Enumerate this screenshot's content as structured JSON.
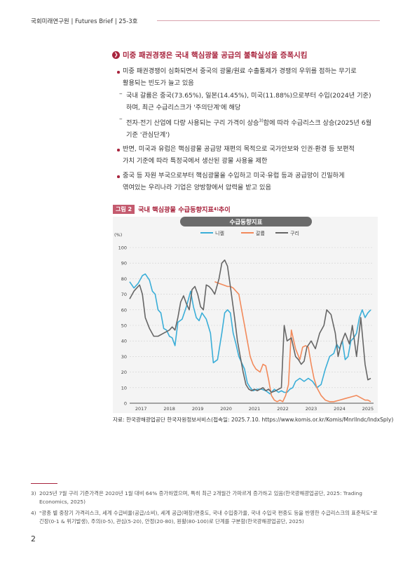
{
  "header": {
    "text": "국회미래연구원 | Futures Brief | 25-3호"
  },
  "section": {
    "title": "미중 패권경쟁은 국내 핵심광물 공급의 불확실성을 증폭시킴"
  },
  "bullets": [
    {
      "line1": "미중 패권경쟁이 심화되면서 중국의 광물/원료 수출통제가 경쟁의 우위를 점하는 무기로",
      "line2": "활용되는 빈도가 늘고 있음"
    },
    {
      "line1": "반면, 미국과 유럽은 핵심광물 공급망 재편의 목적으로 국가안보와 인권·환경 등 보편적",
      "line2": "가치 기준에 따라 특정국에서 생산된 광물 사용을 제한"
    },
    {
      "line1": "중국 등 자원 부국으로부터 핵심광물을 수입하고 미국·유럽 등과 공급망이 긴밀하게",
      "line2": "엮여있는 우리나라 기업은 양방향에서 압력을 받고 있음"
    }
  ],
  "subs": [
    {
      "line1": "국내 갈륨은 중국(73.65%), 일본(14.45%), 미국(11.88%)으로부터 수입(2024년 기준)",
      "line2": "하며, 최근 수급리스크가 '주의단계'에 해당"
    },
    {
      "line1a": "전자·전기 산업에 다량 사용되는 구리 가격이 상승",
      "sup": "3)",
      "line1b": "함에 따라 수급리스크 상승(2025년 6월",
      "line2": "기준 '관심단계')"
    }
  ],
  "figure": {
    "badge": "그림 2",
    "title": "국내 핵심광물 수급동향지표",
    "sup": "4)",
    "title_suffix": " 추이"
  },
  "source": "자료: 한국광해광업공단 한국자원정보서비스(접속일: 2025.7.10. https://www.komis.or.kr/Komis/MnrlIndc/IndxSply)",
  "footnotes": [
    {
      "num": "3)",
      "text": "2025년 7월 구리 기준가격은 2020년 1월 대비 64% 증가하였으며, 특히 최근 2개월간 가파르게 증가하고 있음(한국광해광업공단, 2025: Trading Economics, 2025)"
    },
    {
      "num": "4)",
      "text": "\"광종 별 중장기 가격리스크, 세계 수급비율(공급/소비), 세계 공급(매장)편중도, 국내 수입중가율, 국내 수입국 편중도 등을 반영한 수급리스크의 표준척도\"로 긴장(0-1 & 위기발생), 주의(0-5), 관심(5-20), 안정(20-80), 원활(80-100)로 단계를 구분함(한국광해광업공단, 2025)"
    }
  ],
  "page_number": "2",
  "chart_data": {
    "type": "line",
    "title": "수급동향지표",
    "ylabel": "(%)",
    "xlabel": "",
    "ylim": [
      0,
      100
    ],
    "xlim": [
      2016.6,
      2025.2
    ],
    "y_ticks": [
      "0",
      "10",
      "20",
      "30",
      "40",
      "50",
      "60",
      "70",
      "80",
      "90",
      "100"
    ],
    "x_ticks": [
      "2017",
      "2018",
      "2019",
      "2020",
      "2021",
      "2022",
      "2023",
      "2024",
      "2025"
    ],
    "grid": true,
    "legend": "top",
    "series": [
      {
        "name": "니켈",
        "color": "#3aaed8",
        "x": [
          2016.6,
          2016.75,
          2016.9,
          2017.05,
          2017.15,
          2017.3,
          2017.4,
          2017.5,
          2017.6,
          2017.7,
          2017.8,
          2017.9,
          2018.0,
          2018.1,
          2018.2,
          2018.3,
          2018.45,
          2018.6,
          2018.75,
          2018.85,
          2018.95,
          2019.05,
          2019.15,
          2019.3,
          2019.45,
          2019.55,
          2019.7,
          2019.85,
          2019.95,
          2020.05,
          2020.15,
          2020.25,
          2020.35,
          2020.45,
          2020.55,
          2020.65,
          2020.75,
          2020.85,
          2020.95,
          2021.1,
          2021.25,
          2021.4,
          2021.55,
          2021.7,
          2021.85,
          2021.95,
          2022.05,
          2022.15,
          2022.25,
          2022.35,
          2022.45,
          2022.6,
          2022.75,
          2022.9,
          2023.05,
          2023.2,
          2023.35,
          2023.5,
          2023.65,
          2023.8,
          2023.9,
          2024.0,
          2024.1,
          2024.2,
          2024.3,
          2024.4,
          2024.5,
          2024.6,
          2024.7,
          2024.8,
          2024.9,
          2025.0,
          2025.1
        ],
        "values": [
          78,
          74,
          77,
          82,
          83,
          79,
          72,
          70,
          60,
          58,
          48,
          47,
          43,
          42,
          37,
          52,
          54,
          62,
          72,
          62,
          55,
          53,
          58,
          54,
          45,
          26,
          28,
          45,
          58,
          60,
          58,
          45,
          38,
          30,
          26,
          22,
          13,
          10,
          8,
          9,
          9,
          8,
          6,
          9,
          7,
          8,
          7,
          7,
          9,
          10,
          14,
          16,
          14,
          16,
          14,
          10,
          12,
          22,
          30,
          32,
          38,
          35,
          40,
          28,
          30,
          40,
          42,
          45,
          55,
          60,
          55,
          58,
          60
        ]
      },
      {
        "name": "갈륨",
        "color": "#f28a5b",
        "x": [
          2019.6,
          2019.75,
          2019.9,
          2020.05,
          2020.15,
          2020.25,
          2020.35,
          2020.45,
          2020.55,
          2020.65,
          2020.75,
          2020.85,
          2020.95,
          2021.05,
          2021.2,
          2021.3,
          2021.4,
          2021.5,
          2021.6,
          2021.7,
          2021.8,
          2021.9,
          2022.0,
          2022.1,
          2022.2,
          2022.3,
          2022.45,
          2022.6,
          2022.7,
          2022.8,
          2022.9,
          2023.0,
          2023.1,
          2023.2,
          2023.35,
          2023.5,
          2023.65,
          2023.8,
          2024.0,
          2024.2,
          2024.4,
          2024.6,
          2024.8,
          2024.9,
          2025.0,
          2025.1
        ],
        "values": [
          78,
          77,
          76,
          75,
          75,
          74,
          72,
          70,
          60,
          50,
          40,
          30,
          25,
          22,
          20,
          25,
          24,
          15,
          5,
          2,
          1,
          2,
          1,
          5,
          12,
          47,
          35,
          28,
          36,
          37,
          36,
          25,
          16,
          10,
          5,
          2,
          1,
          1,
          2,
          3,
          4,
          5,
          3,
          2,
          2,
          1
        ]
      },
      {
        "name": "구리",
        "color": "#666666",
        "x": [
          2016.6,
          2016.75,
          2016.85,
          2016.95,
          2017.05,
          2017.15,
          2017.3,
          2017.45,
          2017.6,
          2017.8,
          2018.0,
          2018.1,
          2018.2,
          2018.3,
          2018.4,
          2018.5,
          2018.6,
          2018.7,
          2018.8,
          2018.9,
          2019.0,
          2019.1,
          2019.2,
          2019.3,
          2019.4,
          2019.5,
          2019.6,
          2019.75,
          2019.85,
          2019.95,
          2020.05,
          2020.15,
          2020.3,
          2020.4,
          2020.5,
          2020.6,
          2020.7,
          2020.8,
          2020.9,
          2021.0,
          2021.1,
          2021.2,
          2021.3,
          2021.4,
          2021.5,
          2021.6,
          2021.75,
          2021.85,
          2021.95,
          2022.05,
          2022.15,
          2022.3,
          2022.45,
          2022.55,
          2022.65,
          2022.75,
          2022.85,
          2023.0,
          2023.15,
          2023.3,
          2023.45,
          2023.55,
          2023.7,
          2023.85,
          2023.95,
          2024.05,
          2024.2,
          2024.35,
          2024.45,
          2024.6,
          2024.75,
          2024.9,
          2025.0,
          2025.1
        ],
        "values": [
          67,
          72,
          74,
          76,
          70,
          55,
          48,
          43,
          43,
          45,
          47,
          49,
          47,
          55,
          65,
          69,
          64,
          60,
          73,
          75,
          70,
          62,
          60,
          76,
          75,
          73,
          70,
          80,
          90,
          92,
          88,
          75,
          55,
          40,
          30,
          20,
          12,
          9,
          8,
          9,
          8,
          9,
          10,
          8,
          9,
          7,
          8,
          9,
          10,
          50,
          40,
          42,
          30,
          28,
          25,
          27,
          36,
          40,
          35,
          45,
          50,
          60,
          57,
          45,
          30,
          38,
          45,
          38,
          50,
          30,
          55,
          25,
          15,
          16
        ]
      }
    ]
  }
}
